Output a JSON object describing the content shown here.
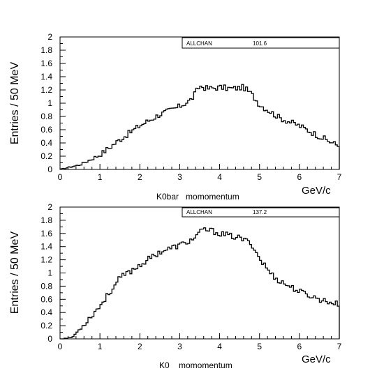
{
  "chart_data": [
    {
      "type": "histogram",
      "xlabel": "K0bar   momomentum",
      "unit_label": "GeV/c",
      "ylabel": "Entries / 50 MeV",
      "xlim": [
        0,
        7
      ],
      "ylim": [
        0,
        2
      ],
      "x_ticks": [
        "0",
        "1",
        "2",
        "3",
        "4",
        "5",
        "6",
        "7"
      ],
      "y_ticks": [
        "0",
        "0.2",
        "0.4",
        "0.6",
        "0.8",
        "1",
        "1.2",
        "1.4",
        "1.6",
        "1.8",
        "2"
      ],
      "stats": {
        "name": "ALLCHAN",
        "value": "101.6"
      },
      "bin_width": 0.05,
      "grid": false,
      "x": [
        0.0,
        0.5,
        1.0,
        1.5,
        2.0,
        2.5,
        3.0,
        3.3,
        3.5,
        3.7,
        4.0,
        4.3,
        4.6,
        4.8,
        5.0,
        5.5,
        6.0,
        6.5,
        7.0
      ],
      "values": [
        0.0,
        0.07,
        0.22,
        0.45,
        0.66,
        0.83,
        0.95,
        1.06,
        1.26,
        1.22,
        1.24,
        1.22,
        1.24,
        1.14,
        0.98,
        0.78,
        0.66,
        0.5,
        0.35
      ]
    },
    {
      "type": "histogram",
      "xlabel": "K0    momomentum",
      "unit_label": "GeV/c",
      "ylabel": "Entries / 50 MeV",
      "xlim": [
        0,
        7
      ],
      "ylim": [
        0,
        2
      ],
      "x_ticks": [
        "0",
        "1",
        "2",
        "3",
        "4",
        "5",
        "6",
        "7"
      ],
      "y_ticks": [
        "0",
        "0.2",
        "0.4",
        "0.6",
        "0.8",
        "1",
        "1.2",
        "1.4",
        "1.6",
        "1.8",
        "2"
      ],
      "stats": {
        "name": "ALLCHAN",
        "value": "137.2"
      },
      "bin_width": 0.05,
      "grid": false,
      "x": [
        0.0,
        0.3,
        0.5,
        1.0,
        1.5,
        2.0,
        2.5,
        3.0,
        3.3,
        3.6,
        3.8,
        4.0,
        4.5,
        4.8,
        5.0,
        5.3,
        5.5,
        6.0,
        6.5,
        7.0
      ],
      "values": [
        0.0,
        0.02,
        0.15,
        0.5,
        0.92,
        1.12,
        1.32,
        1.42,
        1.5,
        1.66,
        1.64,
        1.6,
        1.53,
        1.45,
        1.22,
        0.98,
        0.88,
        0.72,
        0.6,
        0.52
      ]
    }
  ]
}
